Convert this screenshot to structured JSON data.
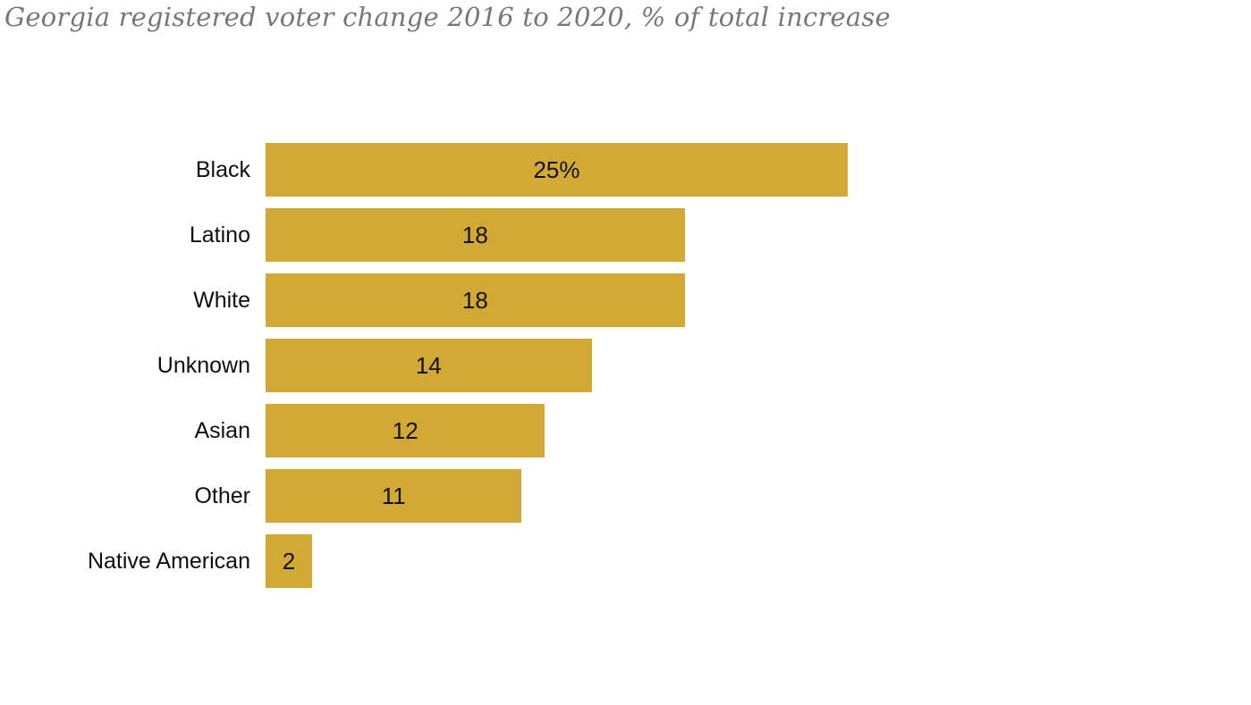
{
  "chart_data": {
    "type": "bar",
    "orientation": "horizontal",
    "title": "Georgia registered voter change 2016 to 2020, % of total increase",
    "categories": [
      "Black",
      "Latino",
      "White",
      "Unknown",
      "Asian",
      "Other",
      "Native American"
    ],
    "values": [
      25,
      18,
      18,
      14,
      12,
      11,
      2
    ],
    "value_labels": [
      "25%",
      "18",
      "18",
      "14",
      "12",
      "11",
      "2"
    ],
    "xlabel": "",
    "ylabel": "",
    "xlim": [
      0,
      25
    ],
    "grid": false,
    "legend": "none",
    "bar_color": "#d3a935",
    "title_color": "#75787b",
    "label_color": "#0f0f0f",
    "value_label_position": "center",
    "background_color": "#ffffff"
  }
}
